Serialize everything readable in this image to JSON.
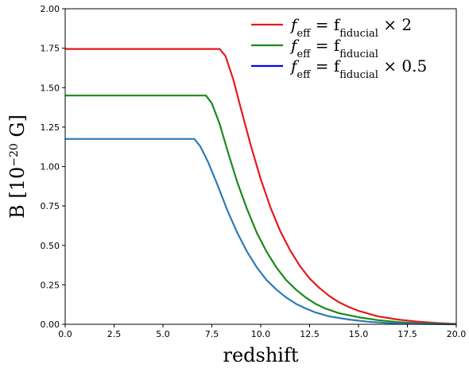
{
  "chart_data": {
    "type": "line",
    "xlabel": "redshift",
    "ylabel": "B [10",
    "ylabel_sup": "−20",
    "ylabel_unit": " G]",
    "xlim": [
      0,
      20
    ],
    "ylim": [
      0,
      2
    ],
    "x_ticks": [
      0.0,
      2.5,
      5.0,
      7.5,
      10.0,
      12.5,
      15.0,
      17.5,
      20.0
    ],
    "y_ticks": [
      0.0,
      0.25,
      0.5,
      0.75,
      1.0,
      1.25,
      1.5,
      1.75,
      2.0
    ],
    "x_tick_labels": [
      "0.0",
      "2.5",
      "5.0",
      "7.5",
      "10.0",
      "12.5",
      "15.0",
      "17.5",
      "20.0"
    ],
    "y_tick_labels": [
      "0.00",
      "0.25",
      "0.50",
      "0.75",
      "1.00",
      "1.25",
      "1.50",
      "1.75",
      "2.00"
    ],
    "grid": false,
    "legend_position": "top-right",
    "series": [
      {
        "name": "f_eff = f_fiducial × 2",
        "legend_main": "f",
        "legend_sub": "eff",
        "legend_eq": " = f",
        "legend_sub2": "fiducial",
        "legend_suffix": " × 2",
        "line_color": "#e41a1c",
        "x": [
          0,
          7.9,
          8.2,
          8.6,
          9.0,
          9.5,
          10.0,
          10.5,
          11.0,
          11.5,
          12.0,
          12.5,
          13.0,
          13.5,
          14.0,
          14.5,
          15.0,
          16.0,
          17.0,
          18.0,
          19.0,
          20.0
        ],
        "y": [
          1.745,
          1.745,
          1.7,
          1.55,
          1.36,
          1.13,
          0.92,
          0.74,
          0.59,
          0.47,
          0.37,
          0.29,
          0.23,
          0.18,
          0.14,
          0.11,
          0.085,
          0.05,
          0.03,
          0.017,
          0.008,
          0.002
        ]
      },
      {
        "name": "f_eff = f_fiducial",
        "legend_main": "f",
        "legend_sub": "eff",
        "legend_eq": " = f",
        "legend_sub2": "fiducial",
        "legend_suffix": "",
        "line_color": "#1a8a1a",
        "x": [
          0,
          7.2,
          7.5,
          7.9,
          8.3,
          8.8,
          9.3,
          9.8,
          10.3,
          10.8,
          11.3,
          11.8,
          12.3,
          12.8,
          13.3,
          14.0,
          15.0,
          16.0,
          17.0,
          18.0,
          19.0,
          20.0
        ],
        "y": [
          1.45,
          1.45,
          1.4,
          1.27,
          1.1,
          0.9,
          0.73,
          0.58,
          0.46,
          0.36,
          0.28,
          0.22,
          0.17,
          0.13,
          0.1,
          0.07,
          0.045,
          0.026,
          0.014,
          0.007,
          0.003,
          0.001
        ]
      },
      {
        "name": "f_eff = f_fiducial × 0.5",
        "legend_main": "f",
        "legend_sub": "eff",
        "legend_eq": " = f",
        "legend_sub2": "fiducial",
        "legend_suffix": " × 0.5",
        "legend_color": "#0000ff",
        "line_color": "#2b7bb9",
        "x": [
          0,
          6.6,
          6.9,
          7.3,
          7.8,
          8.3,
          8.8,
          9.3,
          9.8,
          10.3,
          10.8,
          11.3,
          11.8,
          12.3,
          12.8,
          13.5,
          14.5,
          15.5,
          16.5,
          17.5,
          18.5,
          20.0
        ],
        "y": [
          1.175,
          1.175,
          1.13,
          1.03,
          0.88,
          0.72,
          0.58,
          0.46,
          0.36,
          0.28,
          0.22,
          0.17,
          0.13,
          0.1,
          0.075,
          0.05,
          0.03,
          0.016,
          0.008,
          0.004,
          0.002,
          0.0
        ]
      }
    ]
  }
}
